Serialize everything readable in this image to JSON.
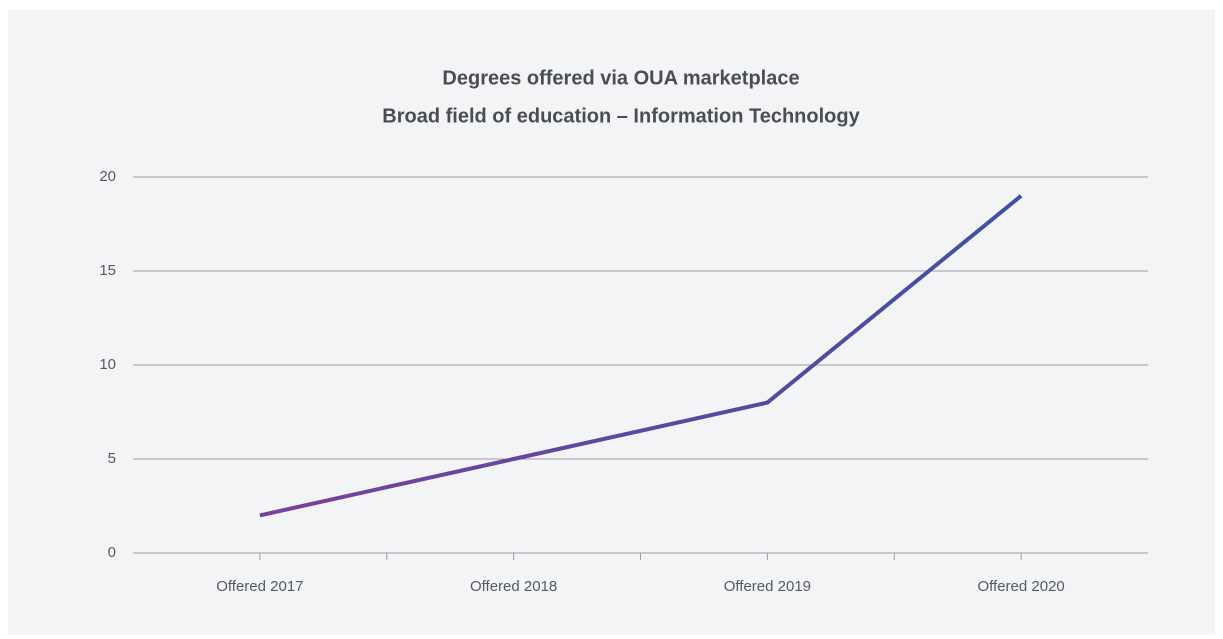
{
  "chart_data": {
    "type": "line",
    "title": "Degrees offered via OUA marketplace",
    "subtitle": "Broad field of education – Information Technology",
    "categories": [
      "Offered 2017",
      "Offered 2018",
      "Offered 2019",
      "Offered 2020"
    ],
    "values": [
      2,
      5,
      8,
      19
    ],
    "color": [
      "#7b3f9d",
      "#3d52a3"
    ],
    "ylim": [
      0,
      20
    ],
    "yticks": [
      0,
      5,
      10,
      15,
      20
    ],
    "grid": true
  }
}
